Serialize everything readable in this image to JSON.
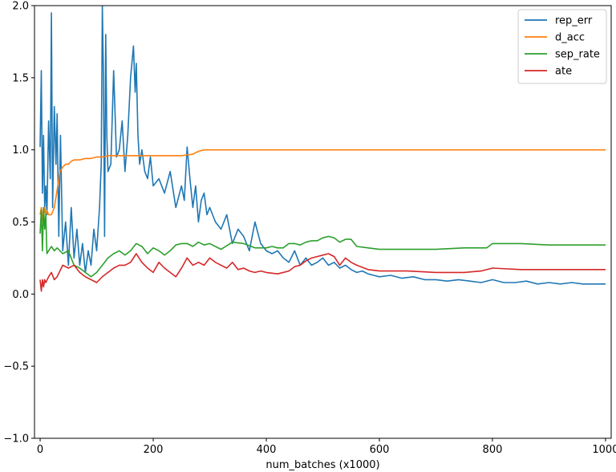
{
  "chart_data": {
    "type": "line",
    "title": "",
    "xlabel": "num_batches (x1000)",
    "ylabel": "",
    "xlim": [
      -10,
      1010
    ],
    "ylim": [
      -1.0,
      2.0
    ],
    "xticks": [
      0,
      200,
      400,
      600,
      800,
      1000
    ],
    "yticks": [
      -1.0,
      -0.5,
      0.0,
      0.5,
      1.0,
      1.5,
      2.0
    ],
    "xtick_labels": [
      "0",
      "200",
      "400",
      "600",
      "800",
      "1000"
    ],
    "ytick_labels": [
      "−1.0",
      "−0.5",
      "0.0",
      "0.5",
      "1.0",
      "1.5",
      "2.0"
    ],
    "grid": false,
    "legend_position": "top-right",
    "series": [
      {
        "name": "rep_err",
        "color": "#1f77b4",
        "x": [
          0,
          2,
          4,
          6,
          8,
          10,
          12,
          15,
          18,
          20,
          22,
          25,
          28,
          30,
          33,
          36,
          40,
          45,
          50,
          55,
          60,
          65,
          70,
          75,
          80,
          85,
          90,
          95,
          100,
          105,
          108,
          110,
          112,
          114,
          116,
          118,
          120,
          125,
          130,
          135,
          140,
          145,
          150,
          155,
          160,
          165,
          168,
          170,
          173,
          176,
          180,
          185,
          190,
          195,
          200,
          210,
          220,
          230,
          240,
          250,
          255,
          260,
          265,
          270,
          275,
          280,
          285,
          290,
          295,
          300,
          310,
          320,
          330,
          340,
          350,
          360,
          370,
          380,
          390,
          400,
          410,
          420,
          430,
          440,
          450,
          460,
          470,
          480,
          490,
          500,
          510,
          520,
          530,
          540,
          550,
          560,
          570,
          580,
          590,
          600,
          620,
          640,
          660,
          680,
          700,
          720,
          740,
          760,
          780,
          800,
          820,
          840,
          860,
          880,
          900,
          920,
          940,
          960,
          980,
          1000
        ],
        "y": [
          1.02,
          1.55,
          0.7,
          1.1,
          0.6,
          0.75,
          0.55,
          1.2,
          0.8,
          1.95,
          0.6,
          1.3,
          0.9,
          1.25,
          0.4,
          1.1,
          0.3,
          0.5,
          0.2,
          0.6,
          0.25,
          0.45,
          0.2,
          0.35,
          0.15,
          0.3,
          0.2,
          0.45,
          0.3,
          0.6,
          0.9,
          2.0,
          1.5,
          0.4,
          1.8,
          1.1,
          0.85,
          0.9,
          1.55,
          0.95,
          1.0,
          1.2,
          0.85,
          1.1,
          1.5,
          1.72,
          1.4,
          1.6,
          1.1,
          0.9,
          1.0,
          0.85,
          0.8,
          0.95,
          0.75,
          0.8,
          0.7,
          0.85,
          0.6,
          0.75,
          0.65,
          1.02,
          0.8,
          0.6,
          0.75,
          0.5,
          0.65,
          0.7,
          0.55,
          0.6,
          0.5,
          0.45,
          0.55,
          0.35,
          0.45,
          0.4,
          0.3,
          0.5,
          0.35,
          0.3,
          0.28,
          0.3,
          0.25,
          0.22,
          0.3,
          0.2,
          0.25,
          0.2,
          0.22,
          0.25,
          0.2,
          0.22,
          0.18,
          0.2,
          0.17,
          0.15,
          0.16,
          0.14,
          0.13,
          0.12,
          0.13,
          0.11,
          0.12,
          0.1,
          0.1,
          0.09,
          0.1,
          0.09,
          0.08,
          0.1,
          0.08,
          0.08,
          0.09,
          0.07,
          0.08,
          0.07,
          0.08,
          0.07,
          0.07,
          0.07
        ]
      },
      {
        "name": "d_acc",
        "color": "#ff7f0e",
        "x": [
          0,
          2,
          5,
          8,
          10,
          12,
          15,
          20,
          25,
          30,
          35,
          40,
          45,
          50,
          55,
          60,
          70,
          80,
          90,
          100,
          110,
          120,
          150,
          200,
          250,
          270,
          280,
          290,
          300,
          400,
          500,
          600,
          700,
          800,
          900,
          1000
        ],
        "y": [
          0.55,
          0.6,
          0.5,
          0.6,
          0.55,
          0.58,
          0.55,
          0.55,
          0.6,
          0.72,
          0.85,
          0.88,
          0.9,
          0.9,
          0.92,
          0.93,
          0.93,
          0.94,
          0.94,
          0.95,
          0.95,
          0.96,
          0.96,
          0.96,
          0.96,
          0.97,
          0.99,
          1.0,
          1.0,
          1.0,
          1.0,
          1.0,
          1.0,
          1.0,
          1.0,
          1.0
        ]
      },
      {
        "name": "sep_rate",
        "color": "#2ca02c",
        "x": [
          0,
          2,
          4,
          6,
          8,
          10,
          12,
          15,
          20,
          25,
          30,
          40,
          50,
          60,
          70,
          80,
          90,
          100,
          110,
          120,
          130,
          140,
          150,
          160,
          170,
          180,
          190,
          200,
          210,
          220,
          230,
          240,
          250,
          260,
          270,
          280,
          290,
          300,
          320,
          340,
          360,
          380,
          400,
          410,
          420,
          430,
          440,
          450,
          460,
          470,
          480,
          490,
          500,
          510,
          520,
          530,
          540,
          550,
          560,
          580,
          600,
          650,
          700,
          750,
          790,
          800,
          850,
          900,
          950,
          1000
        ],
        "y": [
          0.42,
          0.58,
          0.3,
          0.6,
          0.45,
          0.55,
          0.28,
          0.3,
          0.33,
          0.3,
          0.32,
          0.28,
          0.3,
          0.2,
          0.18,
          0.15,
          0.12,
          0.15,
          0.2,
          0.25,
          0.28,
          0.3,
          0.27,
          0.3,
          0.35,
          0.33,
          0.28,
          0.32,
          0.3,
          0.27,
          0.3,
          0.34,
          0.35,
          0.35,
          0.33,
          0.36,
          0.34,
          0.35,
          0.31,
          0.36,
          0.35,
          0.32,
          0.32,
          0.33,
          0.32,
          0.32,
          0.35,
          0.35,
          0.34,
          0.36,
          0.37,
          0.37,
          0.39,
          0.4,
          0.39,
          0.36,
          0.38,
          0.38,
          0.33,
          0.32,
          0.31,
          0.31,
          0.31,
          0.32,
          0.32,
          0.35,
          0.35,
          0.34,
          0.34,
          0.34
        ]
      },
      {
        "name": "ate",
        "color": "#d62728",
        "x": [
          0,
          2,
          4,
          6,
          8,
          10,
          15,
          20,
          25,
          30,
          40,
          50,
          60,
          70,
          80,
          90,
          100,
          110,
          120,
          130,
          140,
          150,
          160,
          170,
          180,
          190,
          200,
          210,
          220,
          230,
          240,
          250,
          260,
          270,
          280,
          290,
          300,
          310,
          320,
          330,
          340,
          350,
          360,
          370,
          380,
          390,
          400,
          420,
          440,
          450,
          460,
          470,
          480,
          490,
          500,
          510,
          520,
          530,
          540,
          550,
          560,
          580,
          600,
          650,
          700,
          750,
          780,
          800,
          850,
          900,
          950,
          1000
        ],
        "y": [
          0.1,
          0.02,
          0.1,
          0.05,
          0.1,
          0.08,
          0.12,
          0.15,
          0.1,
          0.12,
          0.2,
          0.18,
          0.2,
          0.15,
          0.12,
          0.1,
          0.08,
          0.12,
          0.15,
          0.18,
          0.2,
          0.2,
          0.22,
          0.28,
          0.22,
          0.18,
          0.15,
          0.22,
          0.18,
          0.15,
          0.12,
          0.18,
          0.25,
          0.2,
          0.22,
          0.2,
          0.25,
          0.22,
          0.2,
          0.18,
          0.22,
          0.17,
          0.18,
          0.16,
          0.15,
          0.16,
          0.15,
          0.14,
          0.16,
          0.19,
          0.2,
          0.23,
          0.25,
          0.26,
          0.27,
          0.28,
          0.26,
          0.2,
          0.25,
          0.22,
          0.2,
          0.17,
          0.16,
          0.16,
          0.15,
          0.15,
          0.16,
          0.18,
          0.17,
          0.17,
          0.17,
          0.17
        ]
      }
    ]
  }
}
